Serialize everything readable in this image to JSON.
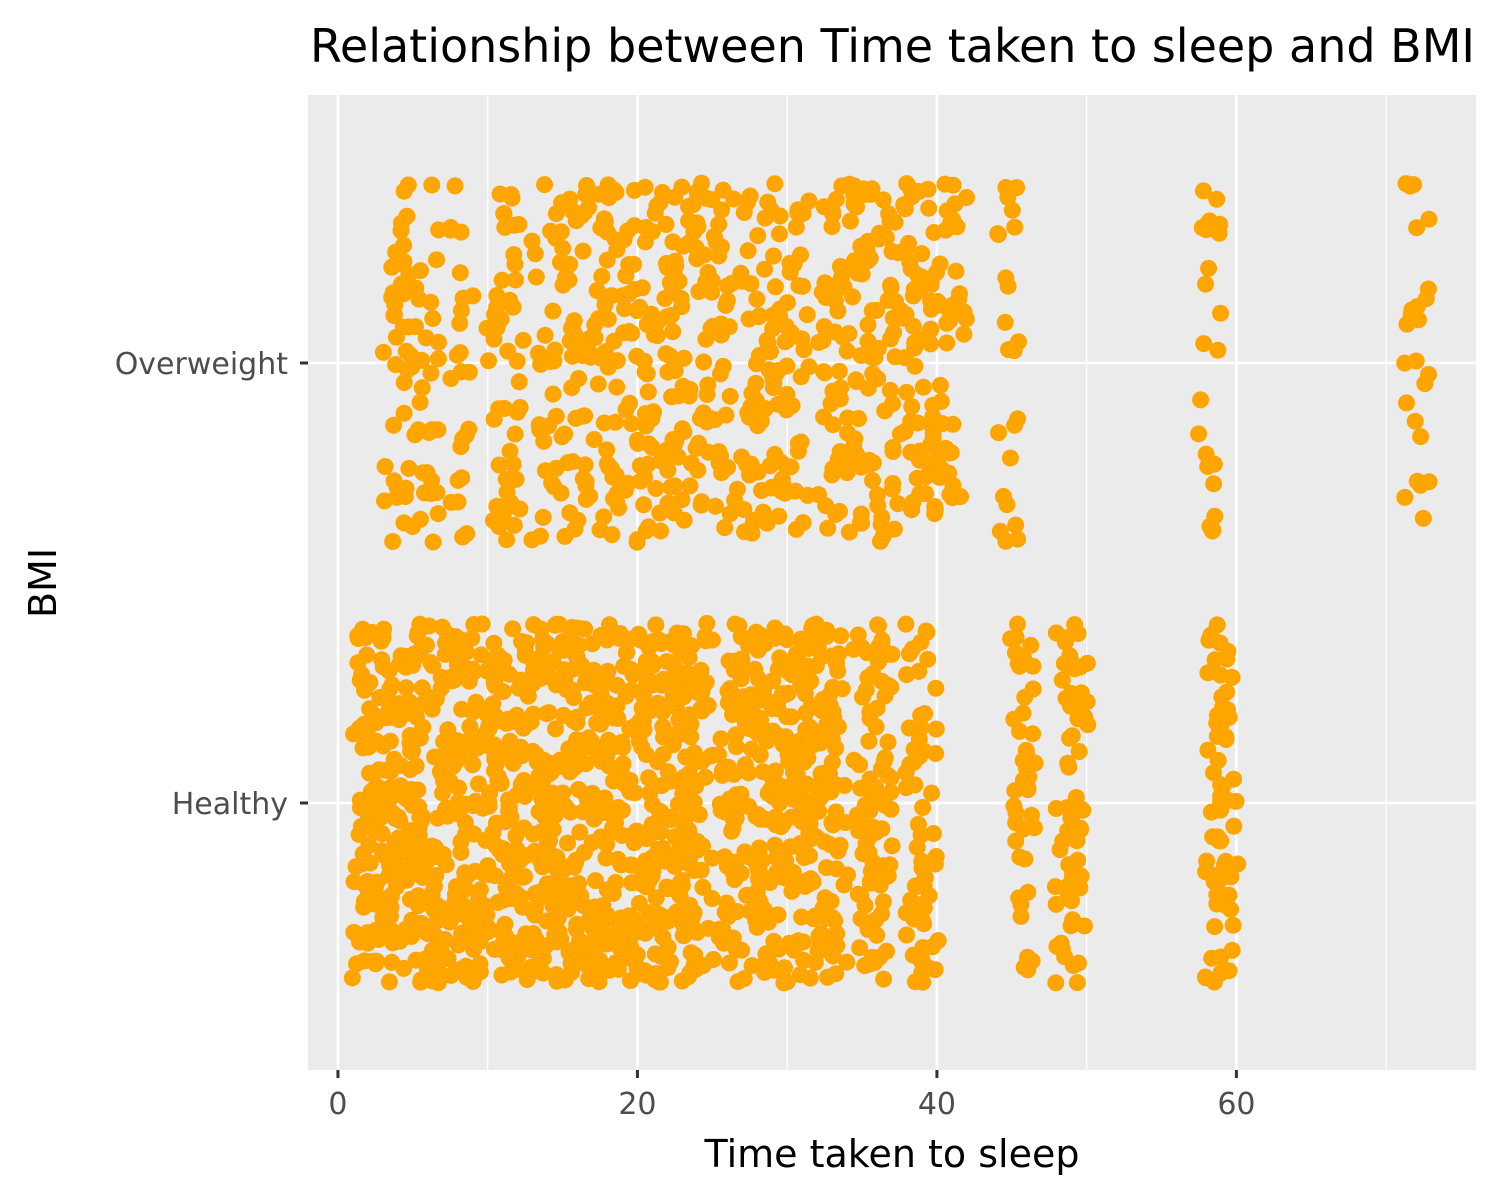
{
  "chart_data": {
    "type": "scatter",
    "title": "Relationship between Time taken to sleep and BMI",
    "xlabel": "Time taken to sleep",
    "ylabel": "BMI",
    "xlim": [
      -2,
      76
    ],
    "x_ticks": [
      0,
      20,
      40,
      60
    ],
    "categories": [
      "Healthy",
      "Overweight"
    ],
    "grid": true,
    "legend": "none",
    "colors": {
      "points": "#FFA500",
      "panel": "#EBEBEB",
      "grid": "#FFFFFF"
    },
    "series": [
      {
        "category": "Overweight",
        "x": [
          3.5,
          4,
          4.5,
          5,
          6,
          6.5,
          8,
          8.5,
          10.5,
          11,
          11.5,
          12,
          13.5,
          14,
          15,
          15.5,
          16,
          16.5,
          17,
          17.5,
          18,
          18.5,
          19,
          19.5,
          20,
          20.5,
          21,
          21.5,
          22,
          22.5,
          23,
          23.5,
          24,
          24.5,
          25,
          25.5,
          26,
          27,
          27.5,
          28,
          28.5,
          29,
          29.5,
          30,
          30.5,
          31,
          32.5,
          33,
          33.5,
          34,
          34.5,
          35,
          35.5,
          36,
          36.5,
          37,
          37.5,
          38,
          38.5,
          39,
          39.5,
          40,
          40.5,
          41,
          41.5,
          44.5,
          45,
          58,
          58.5,
          71.8,
          72.3
        ]
      },
      {
        "category": "Healthy",
        "x": [
          1.5,
          2,
          2.5,
          3,
          3.5,
          4,
          4.5,
          5,
          5.5,
          6,
          6.5,
          7,
          7.5,
          8,
          8.5,
          9,
          9.5,
          10,
          10.5,
          11,
          11.5,
          12,
          12.5,
          13,
          13.5,
          14,
          14.5,
          15,
          15.5,
          16,
          16.5,
          17,
          17.5,
          18,
          18.5,
          19,
          19.5,
          20,
          20.5,
          21,
          21.5,
          22,
          22.5,
          23,
          23.5,
          24,
          24.5,
          26,
          26.5,
          27,
          27.5,
          28,
          28.5,
          29,
          29.5,
          30,
          30.5,
          31,
          31.5,
          32,
          32.5,
          33,
          33.5,
          35,
          35.5,
          36,
          36.5,
          38.5,
          39,
          39.5,
          45.5,
          46,
          48.5,
          49,
          49.5,
          58.5,
          59,
          59.5
        ]
      }
    ]
  }
}
